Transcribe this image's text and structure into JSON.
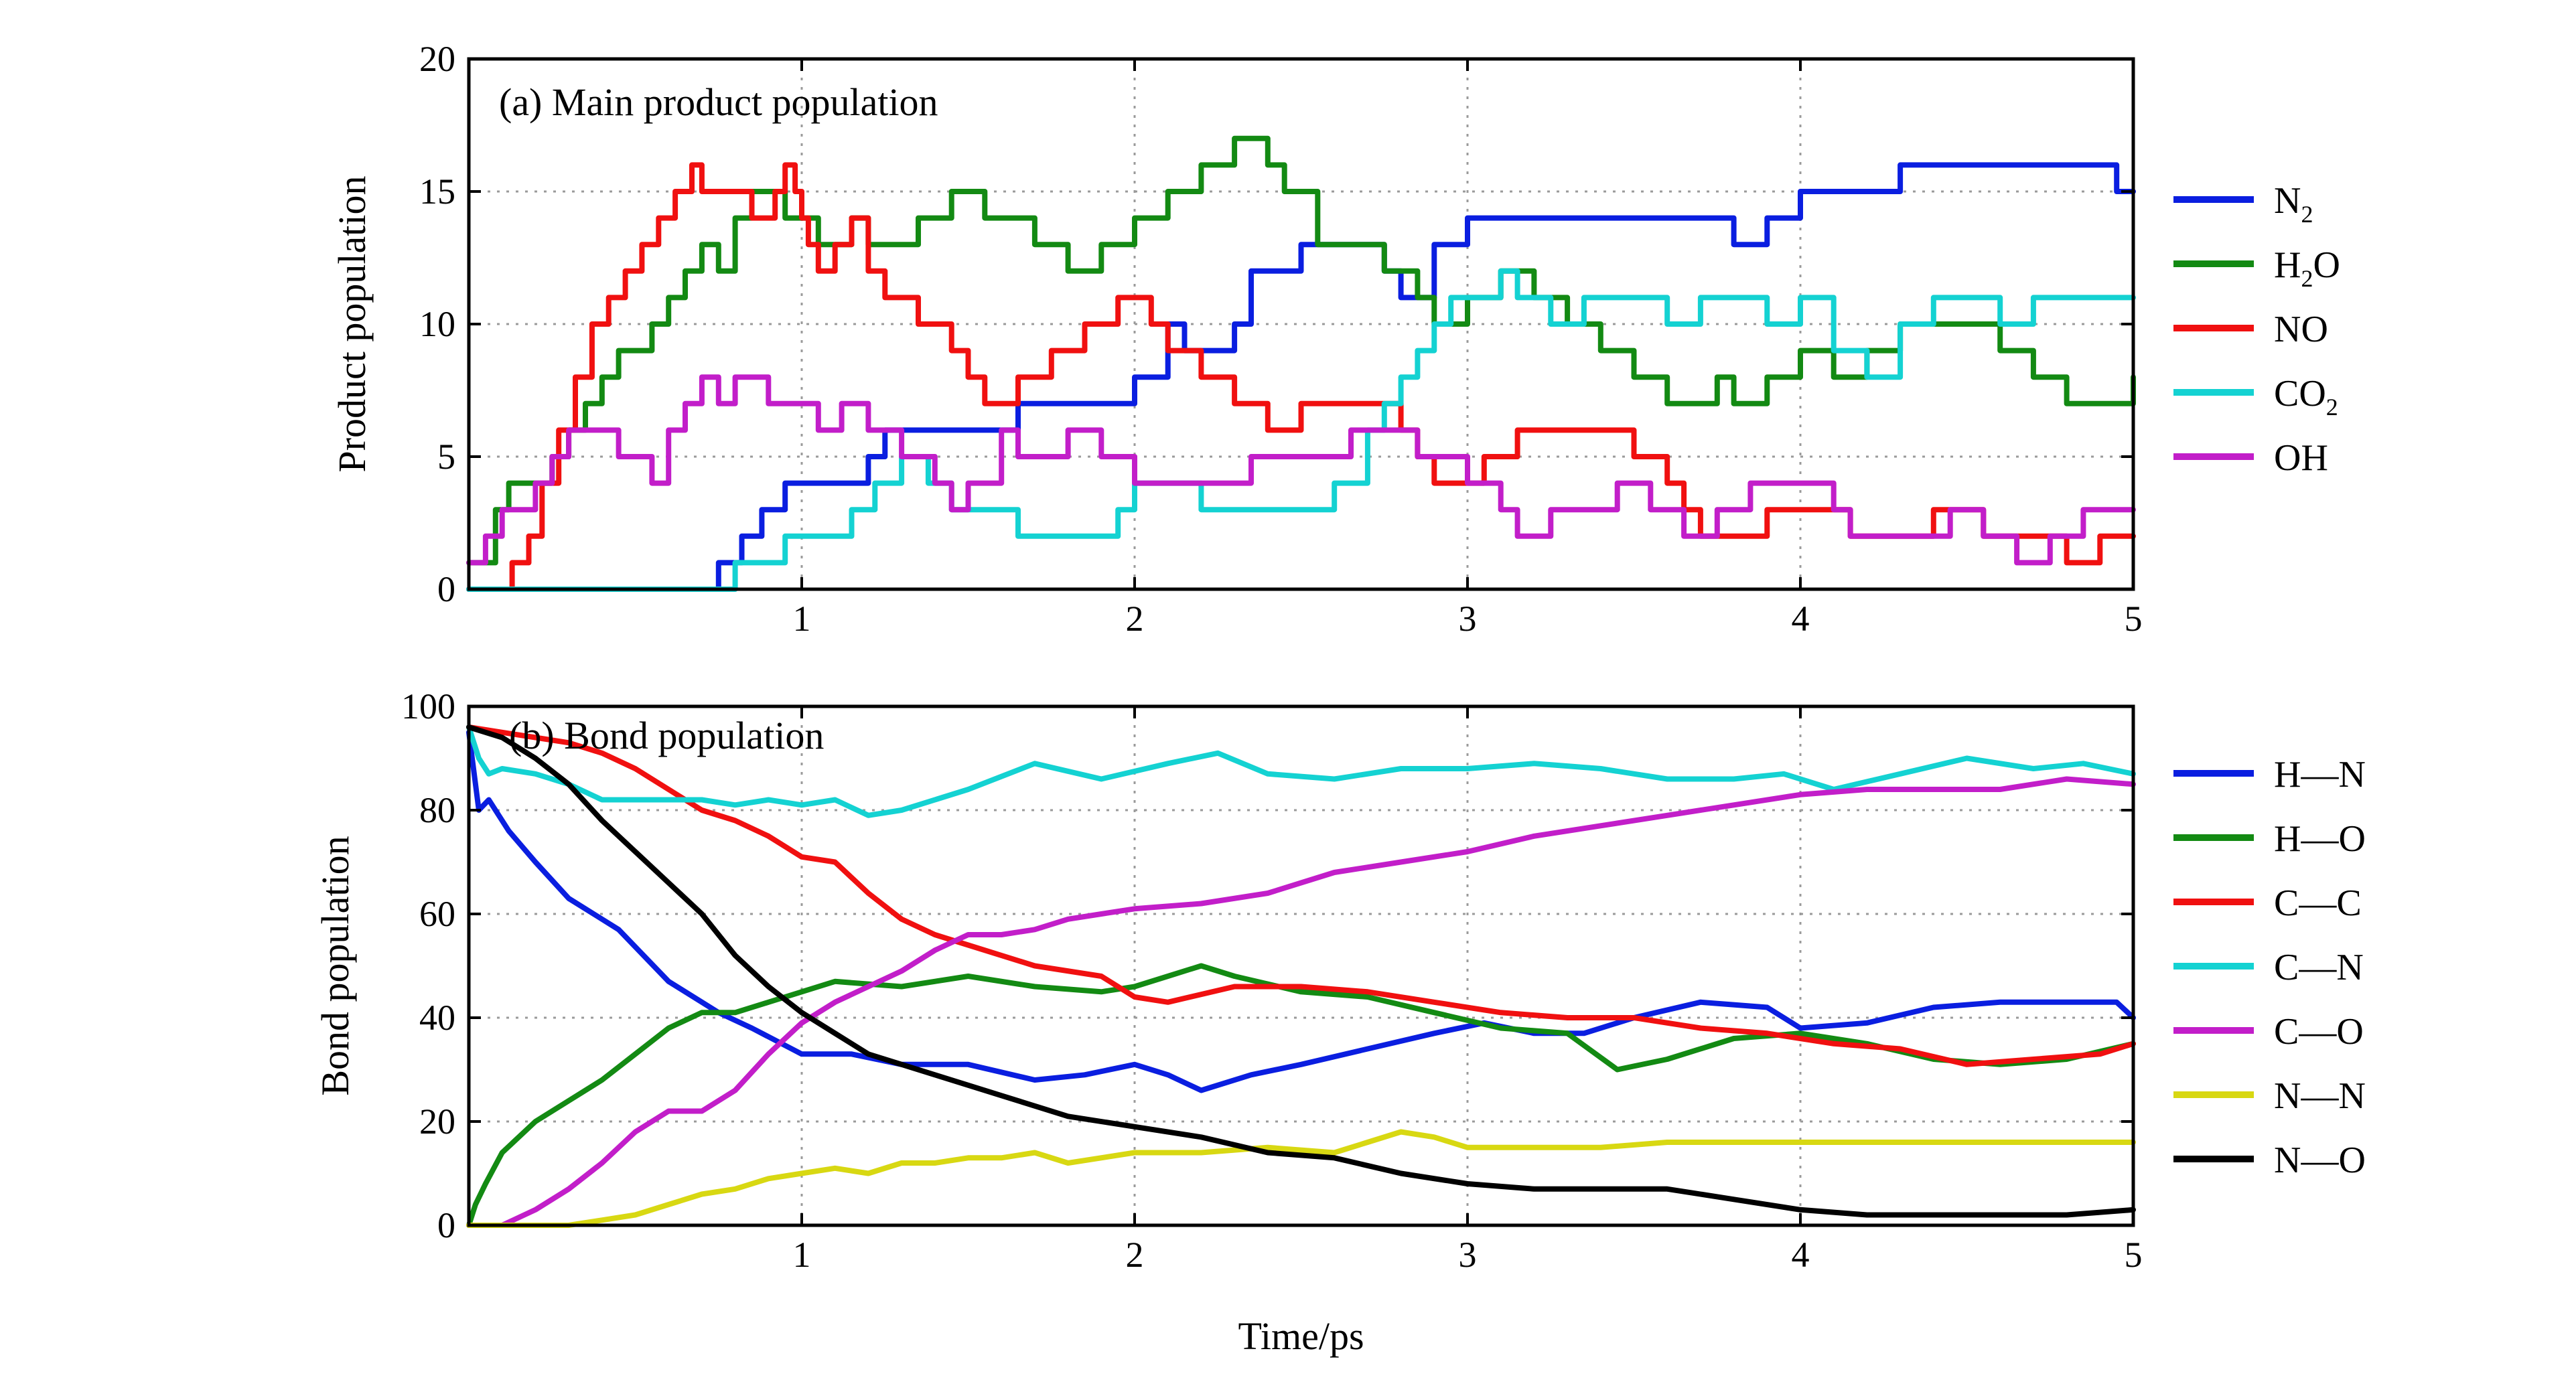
{
  "chart_data": [
    {
      "id": "a",
      "type": "line",
      "step": true,
      "title": "(a) Main product population",
      "xlabel": "",
      "ylabel": "Product population",
      "xlim": [
        0,
        5
      ],
      "ylim": [
        0,
        20
      ],
      "xticks": [
        1,
        2,
        3,
        4,
        5
      ],
      "yticks": [
        0,
        5,
        10,
        15,
        20
      ],
      "grid": true,
      "legend_position": "outside-right",
      "series": [
        {
          "name": "N2",
          "label": "N",
          "sub": "2",
          "color": "#0a1ee0",
          "x": [
            0,
            0.7,
            0.75,
            0.82,
            0.88,
            0.92,
            0.95,
            1.0,
            1.2,
            1.25,
            1.3,
            1.5,
            1.65,
            2.0,
            2.1,
            2.15,
            2.3,
            2.35,
            2.45,
            2.5,
            2.75,
            2.8,
            2.9,
            3.0,
            3.1,
            3.8,
            3.9,
            4.0,
            4.3,
            4.5,
            4.9,
            4.95
          ],
          "y": [
            0,
            0,
            1,
            2,
            3,
            3,
            4,
            4,
            5,
            6,
            6,
            6,
            7,
            8,
            10,
            9,
            10,
            12,
            12,
            13,
            12,
            11,
            13,
            14,
            14,
            13,
            14,
            15,
            16,
            16,
            16,
            15
          ]
        },
        {
          "name": "H2O",
          "label": "H",
          "sub": "2",
          "label2": "O",
          "color": "#138a13",
          "x": [
            0,
            0.08,
            0.12,
            0.2,
            0.25,
            0.3,
            0.35,
            0.4,
            0.45,
            0.55,
            0.6,
            0.65,
            0.7,
            0.75,
            0.8,
            0.85,
            0.9,
            0.95,
            1.0,
            1.05,
            1.15,
            1.2,
            1.3,
            1.35,
            1.45,
            1.55,
            1.7,
            1.8,
            1.9,
            2.0,
            2.1,
            2.2,
            2.3,
            2.4,
            2.45,
            2.55,
            2.6,
            2.75,
            2.85,
            2.9,
            3.0,
            3.1,
            3.15,
            3.2,
            3.3,
            3.4,
            3.5,
            3.6,
            3.7,
            3.75,
            3.8,
            3.9,
            4.0,
            4.1,
            4.2,
            4.3,
            4.45,
            4.6,
            4.7,
            4.8,
            5.0
          ],
          "y": [
            1,
            3,
            4,
            4,
            5,
            6,
            7,
            8,
            9,
            10,
            11,
            12,
            13,
            12,
            14,
            15,
            15,
            14,
            14,
            13,
            14,
            13,
            13,
            14,
            15,
            14,
            13,
            12,
            13,
            14,
            15,
            16,
            17,
            16,
            15,
            13,
            13,
            12,
            11,
            10,
            11,
            12,
            12,
            11,
            10,
            9,
            8,
            7,
            7,
            8,
            7,
            8,
            9,
            8,
            9,
            10,
            10,
            9,
            8,
            7,
            8
          ]
        },
        {
          "name": "NO",
          "label": "NO",
          "color": "#f01010",
          "x": [
            0,
            0.1,
            0.13,
            0.18,
            0.22,
            0.27,
            0.32,
            0.37,
            0.42,
            0.47,
            0.52,
            0.57,
            0.62,
            0.67,
            0.7,
            0.75,
            0.85,
            0.92,
            0.95,
            0.98,
            1.0,
            1.02,
            1.05,
            1.1,
            1.15,
            1.2,
            1.25,
            1.35,
            1.45,
            1.5,
            1.55,
            1.65,
            1.75,
            1.85,
            1.95,
            2.05,
            2.1,
            2.2,
            2.3,
            2.4,
            2.5,
            2.7,
            2.8,
            2.85,
            2.9,
            3.05,
            3.15,
            3.3,
            3.5,
            3.6,
            3.65,
            3.7,
            3.8,
            3.9,
            4.05,
            4.15,
            4.3,
            4.4,
            4.55,
            4.65,
            4.8,
            4.9,
            5.0
          ],
          "y": [
            0,
            0,
            1,
            2,
            4,
            6,
            8,
            10,
            11,
            12,
            13,
            14,
            15,
            16,
            15,
            15,
            14,
            15,
            16,
            15,
            14,
            13,
            12,
            13,
            14,
            12,
            11,
            10,
            9,
            8,
            7,
            8,
            9,
            10,
            11,
            10,
            9,
            8,
            7,
            6,
            7,
            7,
            6,
            5,
            4,
            5,
            6,
            6,
            5,
            4,
            3,
            2,
            2,
            3,
            3,
            2,
            2,
            3,
            2,
            2,
            1,
            2,
            2
          ]
        },
        {
          "name": "CO2",
          "label": "CO",
          "sub": "2",
          "color": "#14d2d2",
          "x": [
            0,
            0.75,
            0.8,
            0.85,
            0.95,
            1.05,
            1.15,
            1.22,
            1.3,
            1.38,
            1.45,
            1.55,
            1.65,
            1.8,
            1.95,
            2.0,
            2.1,
            2.2,
            2.35,
            2.6,
            2.7,
            2.75,
            2.8,
            2.85,
            2.9,
            2.95,
            3.0,
            3.1,
            3.15,
            3.25,
            3.35,
            3.5,
            3.6,
            3.7,
            3.8,
            3.9,
            4.0,
            4.05,
            4.1,
            4.2,
            4.3,
            4.4,
            4.5,
            4.6,
            4.7,
            4.8,
            4.9,
            5.0
          ],
          "y": [
            0,
            0,
            1,
            1,
            2,
            2,
            3,
            4,
            5,
            4,
            3,
            3,
            2,
            2,
            3,
            4,
            4,
            3,
            3,
            4,
            6,
            7,
            8,
            9,
            10,
            11,
            11,
            12,
            11,
            10,
            11,
            11,
            10,
            11,
            11,
            10,
            11,
            11,
            9,
            8,
            10,
            11,
            11,
            10,
            11,
            11,
            11,
            11
          ]
        },
        {
          "name": "OH",
          "label": "OH",
          "color": "#c21ec9",
          "x": [
            0,
            0.05,
            0.1,
            0.15,
            0.2,
            0.25,
            0.3,
            0.35,
            0.45,
            0.55,
            0.6,
            0.65,
            0.7,
            0.75,
            0.8,
            0.85,
            0.9,
            1.0,
            1.05,
            1.12,
            1.2,
            1.3,
            1.4,
            1.45,
            1.5,
            1.6,
            1.65,
            1.8,
            1.9,
            2.0,
            2.1,
            2.2,
            2.35,
            2.5,
            2.65,
            2.75,
            2.85,
            3.0,
            3.1,
            3.15,
            3.25,
            3.35,
            3.45,
            3.55,
            3.65,
            3.75,
            3.85,
            4.0,
            4.1,
            4.15,
            4.3,
            4.45,
            4.55,
            4.65,
            4.75,
            4.85,
            4.95
          ],
          "y": [
            1,
            2,
            3,
            3,
            4,
            5,
            6,
            6,
            5,
            4,
            6,
            7,
            8,
            7,
            8,
            8,
            7,
            7,
            6,
            7,
            6,
            5,
            4,
            3,
            4,
            6,
            5,
            6,
            5,
            4,
            4,
            4,
            5,
            5,
            6,
            6,
            5,
            4,
            3,
            2,
            3,
            3,
            4,
            3,
            2,
            3,
            4,
            4,
            3,
            2,
            2,
            3,
            2,
            1,
            2,
            3,
            3
          ]
        }
      ]
    },
    {
      "id": "b",
      "type": "line",
      "title": "(b) Bond population",
      "xlabel": "Time/ps",
      "ylabel": "Bond population",
      "xlim": [
        0,
        5
      ],
      "ylim": [
        0,
        100
      ],
      "xticks": [
        1,
        2,
        3,
        4,
        5
      ],
      "yticks": [
        0,
        20,
        40,
        60,
        80,
        100
      ],
      "grid": true,
      "legend_position": "outside-right",
      "series": [
        {
          "name": "H—N",
          "label": "H—N",
          "color": "#0a1ee0",
          "x": [
            0,
            0.03,
            0.06,
            0.12,
            0.2,
            0.3,
            0.45,
            0.6,
            0.75,
            0.85,
            1.0,
            1.15,
            1.3,
            1.5,
            1.7,
            1.85,
            2.0,
            2.1,
            2.2,
            2.35,
            2.5,
            2.7,
            2.9,
            3.05,
            3.2,
            3.35,
            3.5,
            3.7,
            3.9,
            4.0,
            4.2,
            4.4,
            4.6,
            4.8,
            4.95,
            5.0
          ],
          "y": [
            95,
            80,
            82,
            76,
            70,
            63,
            57,
            47,
            41,
            38,
            33,
            33,
            31,
            31,
            28,
            29,
            31,
            29,
            26,
            29,
            31,
            34,
            37,
            39,
            37,
            37,
            40,
            43,
            42,
            38,
            39,
            42,
            43,
            43,
            43,
            40
          ]
        },
        {
          "name": "H—O",
          "label": "H—O",
          "color": "#138a13",
          "x": [
            0,
            0.02,
            0.05,
            0.1,
            0.2,
            0.3,
            0.4,
            0.5,
            0.6,
            0.7,
            0.8,
            0.9,
            1.0,
            1.1,
            1.3,
            1.5,
            1.7,
            1.9,
            2.0,
            2.1,
            2.2,
            2.3,
            2.5,
            2.7,
            2.9,
            3.1,
            3.3,
            3.45,
            3.6,
            3.8,
            4.0,
            4.2,
            4.4,
            4.6,
            4.8,
            5.0
          ],
          "y": [
            0,
            4,
            8,
            14,
            20,
            24,
            28,
            33,
            38,
            41,
            41,
            43,
            45,
            47,
            46,
            48,
            46,
            45,
            46,
            48,
            50,
            48,
            45,
            44,
            41,
            38,
            37,
            30,
            32,
            36,
            37,
            35,
            32,
            31,
            32,
            35
          ]
        },
        {
          "name": "C—C",
          "label": "C—C",
          "color": "#f01010",
          "x": [
            0,
            0.1,
            0.2,
            0.3,
            0.4,
            0.5,
            0.6,
            0.7,
            0.8,
            0.9,
            1.0,
            1.1,
            1.2,
            1.3,
            1.4,
            1.5,
            1.7,
            1.9,
            2.0,
            2.1,
            2.3,
            2.5,
            2.7,
            2.9,
            3.1,
            3.3,
            3.5,
            3.7,
            3.9,
            4.1,
            4.3,
            4.5,
            4.7,
            4.9,
            5.0
          ],
          "y": [
            96,
            95,
            94,
            93,
            91,
            88,
            84,
            80,
            78,
            75,
            71,
            70,
            64,
            59,
            56,
            54,
            50,
            48,
            44,
            43,
            46,
            46,
            45,
            43,
            41,
            40,
            40,
            38,
            37,
            35,
            34,
            31,
            32,
            33,
            35
          ]
        },
        {
          "name": "C—N",
          "label": "C—N",
          "color": "#14d2d2",
          "x": [
            0,
            0.03,
            0.06,
            0.1,
            0.2,
            0.3,
            0.4,
            0.5,
            0.6,
            0.7,
            0.8,
            0.9,
            1.0,
            1.1,
            1.2,
            1.3,
            1.5,
            1.7,
            1.9,
            2.1,
            2.25,
            2.4,
            2.6,
            2.8,
            3.0,
            3.2,
            3.4,
            3.6,
            3.8,
            3.95,
            4.1,
            4.3,
            4.5,
            4.7,
            4.85,
            5.0
          ],
          "y": [
            96,
            90,
            87,
            88,
            87,
            85,
            82,
            82,
            82,
            82,
            81,
            82,
            81,
            82,
            79,
            80,
            84,
            89,
            86,
            89,
            91,
            87,
            86,
            88,
            88,
            89,
            88,
            86,
            86,
            87,
            84,
            87,
            90,
            88,
            89,
            87
          ]
        },
        {
          "name": "C—O",
          "label": "C—O",
          "color": "#c21ec9",
          "x": [
            0,
            0.1,
            0.2,
            0.3,
            0.4,
            0.5,
            0.6,
            0.7,
            0.8,
            0.9,
            1.0,
            1.1,
            1.2,
            1.3,
            1.4,
            1.5,
            1.6,
            1.7,
            1.8,
            1.9,
            2.0,
            2.2,
            2.4,
            2.6,
            2.8,
            3.0,
            3.2,
            3.4,
            3.6,
            3.8,
            4.0,
            4.2,
            4.4,
            4.6,
            4.8,
            5.0
          ],
          "y": [
            0,
            0,
            3,
            7,
            12,
            18,
            22,
            22,
            26,
            33,
            39,
            43,
            46,
            49,
            53,
            56,
            56,
            57,
            59,
            60,
            61,
            62,
            64,
            68,
            70,
            72,
            75,
            77,
            79,
            81,
            83,
            84,
            84,
            84,
            86,
            85
          ]
        },
        {
          "name": "N—N",
          "label": "N—N",
          "color": "#d8d812",
          "x": [
            0,
            0.2,
            0.3,
            0.4,
            0.5,
            0.6,
            0.7,
            0.8,
            0.9,
            1.0,
            1.1,
            1.2,
            1.3,
            1.4,
            1.5,
            1.6,
            1.7,
            1.8,
            2.0,
            2.2,
            2.4,
            2.6,
            2.7,
            2.8,
            2.9,
            3.0,
            3.2,
            3.4,
            3.6,
            3.8,
            4.0,
            4.2,
            4.4,
            4.6,
            4.8,
            5.0
          ],
          "y": [
            0,
            0,
            0,
            1,
            2,
            4,
            6,
            7,
            9,
            10,
            11,
            10,
            12,
            12,
            13,
            13,
            14,
            12,
            14,
            14,
            15,
            14,
            16,
            18,
            17,
            15,
            15,
            15,
            16,
            16,
            16,
            16,
            16,
            16,
            16,
            16
          ]
        },
        {
          "name": "N—O",
          "label": "N—O",
          "color": "#000000",
          "x": [
            0,
            0.05,
            0.1,
            0.2,
            0.3,
            0.4,
            0.5,
            0.6,
            0.7,
            0.8,
            0.9,
            1.0,
            1.1,
            1.2,
            1.3,
            1.4,
            1.5,
            1.6,
            1.7,
            1.8,
            2.0,
            2.2,
            2.4,
            2.6,
            2.8,
            3.0,
            3.2,
            3.4,
            3.6,
            3.8,
            4.0,
            4.2,
            4.4,
            4.6,
            4.8,
            5.0
          ],
          "y": [
            96,
            95,
            94,
            90,
            85,
            78,
            72,
            66,
            60,
            52,
            46,
            41,
            37,
            33,
            31,
            29,
            27,
            25,
            23,
            21,
            19,
            17,
            14,
            13,
            10,
            8,
            7,
            7,
            7,
            5,
            3,
            2,
            2,
            2,
            2,
            3
          ]
        }
      ]
    }
  ]
}
